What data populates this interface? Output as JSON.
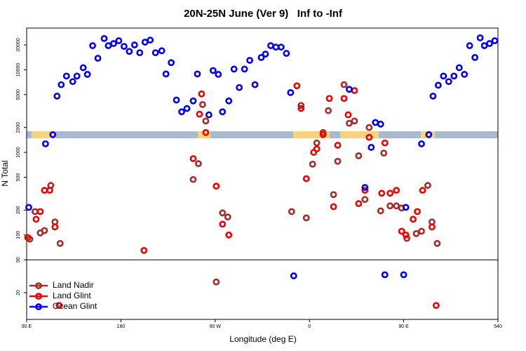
{
  "chart_data": {
    "type": "scatter",
    "title": "20N-25N June (Ver 9)   Inf to -Inf",
    "x_label": "Longitude (deg E)",
    "y_label": "N Total",
    "log_y": true,
    "legend": "bottomleft",
    "reference_line": 50,
    "xlim": [
      90,
      540
    ],
    "ylim": [
      9.5,
      32000
    ],
    "xticks": [
      {
        "value": 90,
        "label": "90 E"
      },
      180,
      {
        "value": 270,
        "label": "90 W"
      },
      {
        "value": 360,
        "label": "0"
      },
      {
        "value": 450,
        "label": "90 E"
      },
      540
    ],
    "yticks": [
      20,
      50,
      100,
      200,
      500,
      1000,
      2000,
      5000,
      10000,
      20000
    ],
    "series": [
      {
        "name": "Land Nadir",
        "color": "#a52a2a",
        "x": [
          93,
          98,
          103,
          107,
          113,
          117,
          122,
          249,
          254,
          258,
          261,
          271,
          277,
          282,
          343,
          352,
          357,
          363,
          367,
          373,
          378,
          383,
          387,
          393,
          398,
          403,
          407,
          413,
          417,
          428,
          431,
          437,
          443,
          448,
          453,
          462,
          467,
          473,
          477,
          482
        ],
        "values": [
          89,
          192,
          106,
          113,
          398,
          144,
          79,
          470,
          730,
          3800,
          2400,
          27,
          185,
          165,
          192,
          3700,
          161,
          720,
          1300,
          1740,
          3200,
          308,
          780,
          6600,
          2250,
          2400,
          910,
          269,
          2000,
          196,
          980,
          225,
          225,
          212,
          91,
          104,
          111,
          398,
          144,
          79
        ]
      },
      {
        "name": "Land Glint",
        "color": "#ee0000",
        "x": [
          91,
          99,
          103,
          107,
          112,
          117,
          121,
          202,
          249,
          257,
          255,
          261,
          271,
          277,
          283,
          348,
          352,
          357,
          364,
          367,
          373,
          379,
          383,
          387,
          393,
          397,
          403,
          407,
          413,
          417,
          429,
          432,
          437,
          443,
          448,
          452,
          459,
          463,
          468,
          477,
          481
        ],
        "values": [
          93,
          155,
          192,
          347,
          347,
          125,
          14,
          65,
          840,
          5100,
          2900,
          1740,
          390,
          135,
          100,
          6400,
          3400,
          480,
          1000,
          1100,
          1640,
          4500,
          220,
          1220,
          4500,
          2850,
          5600,
          240,
          347,
          1520,
          320,
          1300,
          320,
          347,
          111,
          100,
          155,
          192,
          347,
          125,
          14
        ]
      },
      {
        "name": "Ocean Glint",
        "color": "#0000ee",
        "x": [
          92,
          108,
          115,
          119,
          123,
          128,
          134,
          138,
          144,
          148,
          153,
          158,
          164,
          168,
          173,
          178,
          183,
          188,
          193,
          198,
          203,
          208,
          213,
          219,
          223,
          228,
          233,
          238,
          243,
          249,
          253,
          264,
          268,
          273,
          277,
          283,
          288,
          293,
          298,
          303,
          308,
          314,
          318,
          323,
          328,
          333,
          338,
          342,
          345,
          398,
          413,
          419,
          423,
          428,
          432,
          450,
          452,
          467,
          474,
          478,
          483,
          488,
          493,
          498,
          503,
          508,
          513,
          518,
          523,
          527,
          532,
          537
        ],
        "values": [
          216,
          1270,
          1640,
          4800,
          6600,
          8400,
          7200,
          8400,
          10600,
          8800,
          19600,
          13800,
          23900,
          19600,
          20800,
          22500,
          19200,
          16700,
          20000,
          16100,
          21600,
          22900,
          16100,
          17000,
          8900,
          12200,
          4300,
          3100,
          3400,
          4200,
          8900,
          2850,
          9800,
          8800,
          3100,
          4200,
          10200,
          6100,
          10200,
          13000,
          6600,
          14100,
          15500,
          19600,
          18800,
          18800,
          15800,
          5300,
          32,
          5800,
          376,
          1150,
          2300,
          2200,
          33,
          33,
          216,
          1270,
          1640,
          4800,
          6500,
          8400,
          7200,
          8400,
          10600,
          8800,
          19600,
          14100,
          24400,
          19600,
          20800,
          22500
        ]
      }
    ]
  }
}
